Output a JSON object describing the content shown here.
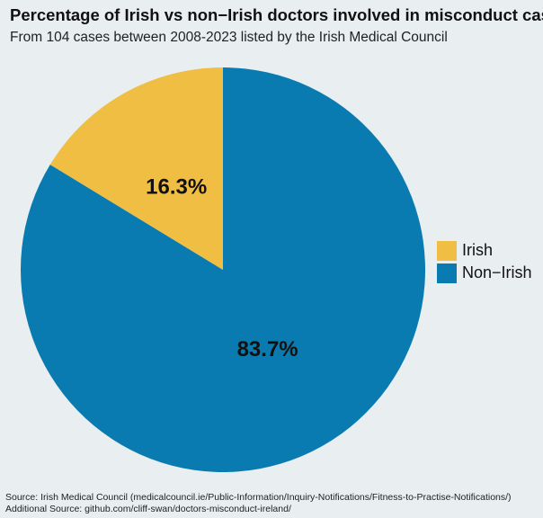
{
  "chart_data": {
    "type": "pie",
    "title": "Percentage of Irish vs non−Irish doctors involved in misconduct cases",
    "subtitle": "From 104 cases between 2008-2023 listed by the Irish Medical Council",
    "categories": [
      "Irish",
      "Non−Irish"
    ],
    "values": [
      16.3,
      83.7
    ],
    "data_labels": [
      "16.3%",
      "83.7%"
    ],
    "colors": [
      "#f0be42",
      "#0a7bb0"
    ],
    "legend_position": "right",
    "start_angle": "12 o'clock, clockwise from Non-Irish"
  },
  "footer": {
    "source": "Source: Irish Medical Council (medicalcouncil.ie/Public-Information/Inquiry-Notifications/Fitness-to-Practise-Notifications/)",
    "additional_source": "Additional Source: github.com/cliff-swan/doctors-misconduct-ireland/"
  }
}
